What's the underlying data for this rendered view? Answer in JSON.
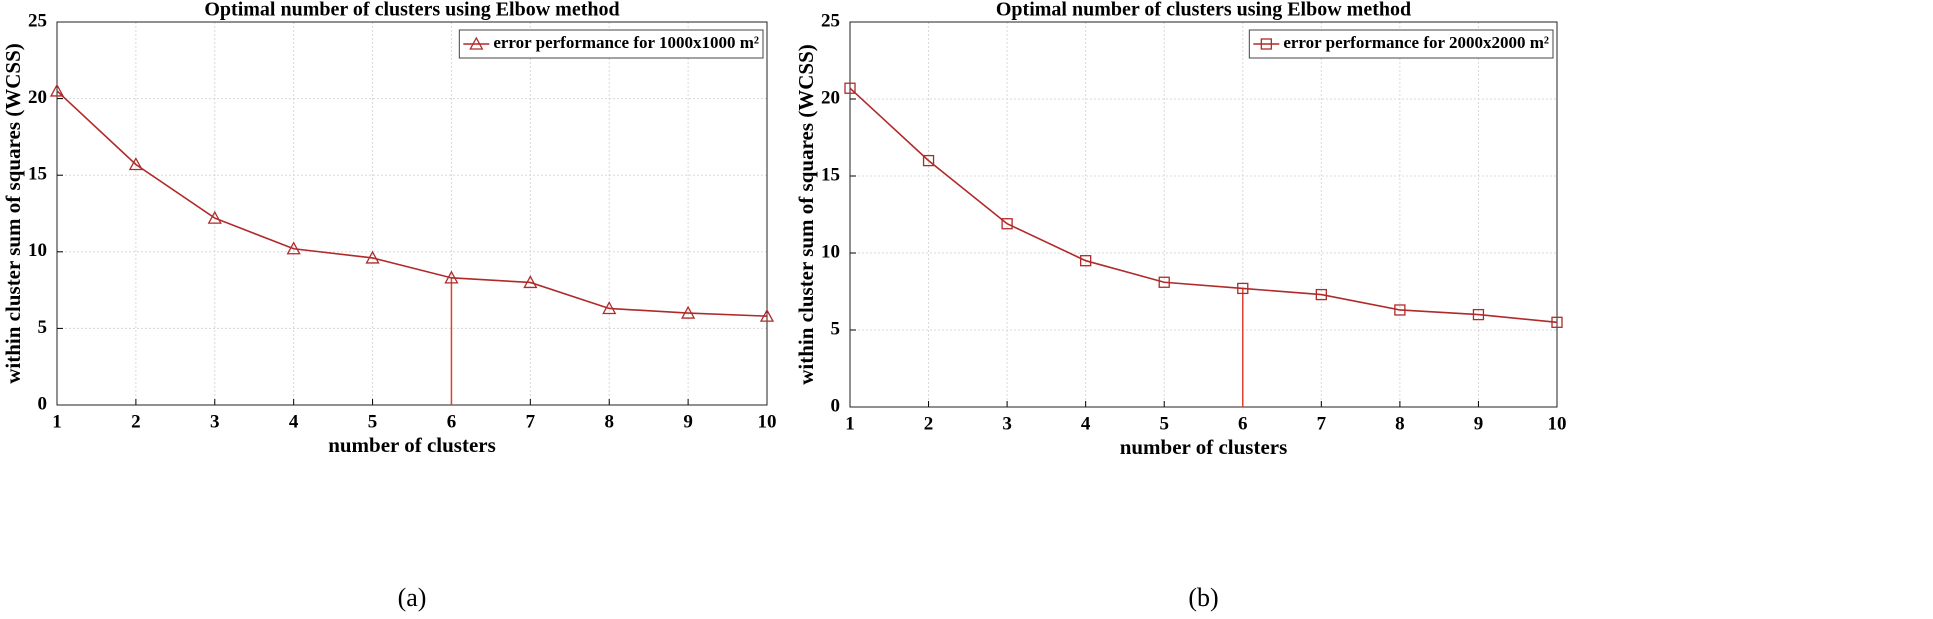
{
  "chart_data": [
    {
      "type": "line",
      "title": "Optimal number of clusters using Elbow method",
      "x_label": "number of clusters",
      "y_label": "within cluster sum of squares (WCSS)",
      "caption": "(a)",
      "x": [
        1,
        2,
        3,
        4,
        5,
        6,
        7,
        8,
        9,
        10
      ],
      "series": [
        {
          "name": "error performance for 1000x1000 m²",
          "color": "#b02a2a",
          "marker": "triangle",
          "values": [
            20.5,
            15.7,
            12.2,
            10.2,
            9.6,
            8.3,
            8.0,
            6.3,
            6.0,
            5.8
          ]
        }
      ],
      "elbow_x": 6,
      "elbow_color": "#e0402a",
      "xlim": [
        1,
        10
      ],
      "xticks": [
        1,
        2,
        3,
        4,
        5,
        6,
        7,
        8,
        9,
        10
      ],
      "ylim": [
        0,
        25
      ],
      "yticks": [
        0,
        5,
        10,
        15,
        20,
        25
      ],
      "grid": true,
      "legend": "northeast"
    },
    {
      "type": "line",
      "title": "Optimal number of clusters using Elbow method",
      "x_label": "number of clusters",
      "y_label": "within cluster sum of squares (WCSS)",
      "caption": "(b)",
      "x": [
        1,
        2,
        3,
        4,
        5,
        6,
        7,
        8,
        9,
        10
      ],
      "series": [
        {
          "name": "error performance for 2000x2000 m²",
          "color": "#b02a2a",
          "marker": "square",
          "values": [
            20.7,
            16.0,
            11.9,
            9.5,
            8.1,
            7.7,
            7.3,
            6.3,
            6.0,
            5.5
          ]
        }
      ],
      "elbow_x": 6,
      "elbow_color": "#e0402a",
      "xlim": [
        1,
        10
      ],
      "xticks": [
        1,
        2,
        3,
        4,
        5,
        6,
        7,
        8,
        9,
        10
      ],
      "ylim": [
        0,
        25
      ],
      "yticks": [
        0,
        5,
        10,
        15,
        20,
        25
      ],
      "grid": true,
      "legend": "northeast"
    }
  ]
}
